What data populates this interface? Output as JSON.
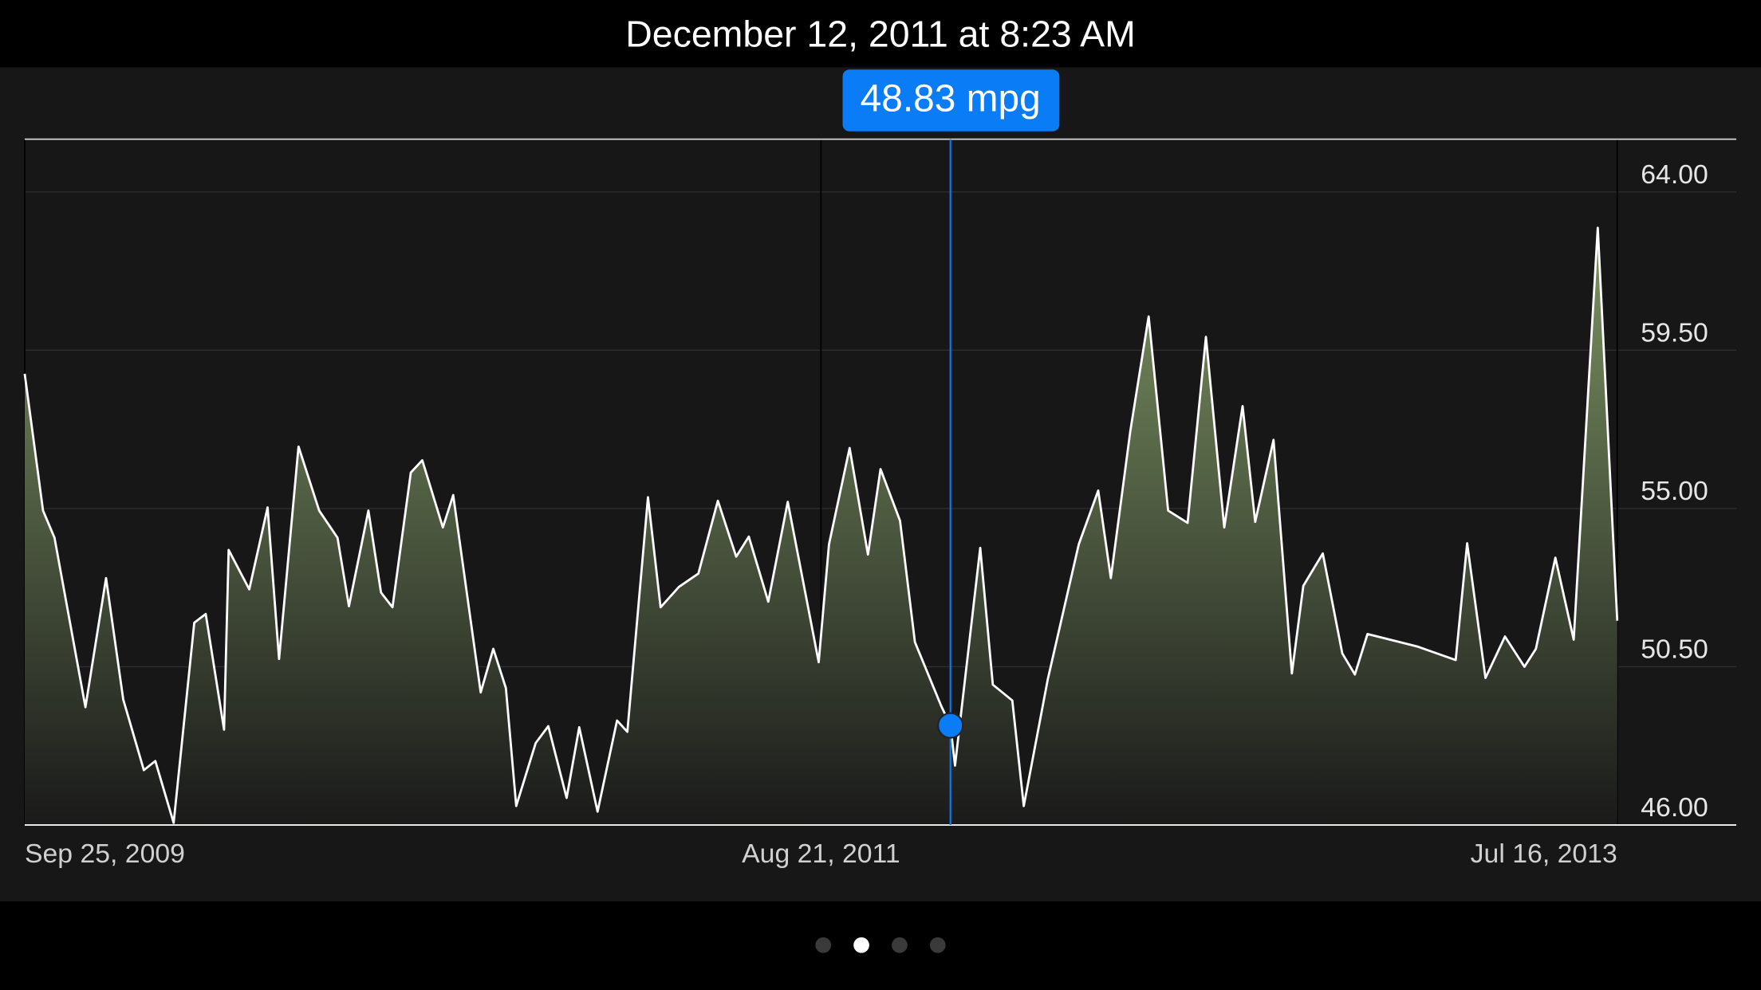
{
  "chart_data": {
    "type": "area",
    "selected": {
      "date": "December 12, 2011 at 8:23 AM",
      "value": 48.83,
      "value_label": "48.83 mpg"
    },
    "color": "#ffffff",
    "fill_color": "#7d9463",
    "highlight_color": "#0a7cf5",
    "xlim": [
      "2009-09-25",
      "2013-07-16"
    ],
    "xticks": [
      {
        "value": "2009-09-25",
        "label": "Sep 25, 2009"
      },
      {
        "value": "2011-08-21",
        "label": "Aug 21, 2011"
      },
      {
        "value": "2013-07-16",
        "label": "Jul 16, 2013"
      }
    ],
    "ylim": [
      46,
      65.5
    ],
    "yticks": [
      {
        "value": 46,
        "label": "46.00"
      },
      {
        "value": 50.5,
        "label": "50.50"
      },
      {
        "value": 55,
        "label": "55.00"
      },
      {
        "value": 59.5,
        "label": "59.50"
      },
      {
        "value": 64,
        "label": "64.00"
      }
    ],
    "grid": true,
    "x": [
      "2009-09-25",
      "2009-10-11",
      "2009-10-21",
      "2009-11-17",
      "2009-12-05",
      "2009-12-20",
      "2010-01-07",
      "2010-01-17",
      "2010-02-02",
      "2010-02-20",
      "2010-03-02",
      "2010-03-18",
      "2010-03-22",
      "2010-04-09",
      "2010-04-25",
      "2010-05-05",
      "2010-05-22",
      "2010-06-09",
      "2010-06-25",
      "2010-07-05",
      "2010-07-22",
      "2010-08-02",
      "2010-08-12",
      "2010-08-28",
      "2010-09-07",
      "2010-09-25",
      "2010-10-04",
      "2010-10-28",
      "2010-11-08",
      "2010-11-19",
      "2010-11-28",
      "2010-12-15",
      "2010-12-26",
      "2011-01-11",
      "2011-01-22",
      "2011-02-07",
      "2011-02-24",
      "2011-03-05",
      "2011-03-23",
      "2011-04-03",
      "2011-04-19",
      "2011-05-06",
      "2011-05-23",
      "2011-06-08",
      "2011-06-19",
      "2011-07-06",
      "2011-07-23",
      "2011-08-19",
      "2011-08-28",
      "2011-09-15",
      "2011-10-01",
      "2011-10-12",
      "2011-10-29",
      "2011-11-11",
      "2011-12-04",
      "2011-12-12",
      "2011-12-16",
      "2012-01-07",
      "2012-01-18",
      "2012-02-04",
      "2012-02-14",
      "2012-03-06",
      "2012-04-02",
      "2012-04-19",
      "2012-04-30",
      "2012-05-17",
      "2012-06-02",
      "2012-06-19",
      "2012-07-06",
      "2012-07-22",
      "2012-08-07",
      "2012-08-23",
      "2012-09-03",
      "2012-09-19",
      "2012-10-05",
      "2012-10-15",
      "2012-11-01",
      "2012-11-18",
      "2012-11-29",
      "2012-12-10",
      "2013-01-23",
      "2013-02-25",
      "2013-03-07",
      "2013-03-23",
      "2013-04-09",
      "2013-04-26",
      "2013-05-06",
      "2013-05-23",
      "2013-06-08",
      "2013-06-29",
      "2013-07-16"
    ],
    "values": [
      58.83,
      54.94,
      54.17,
      49.35,
      53.02,
      49.57,
      47.56,
      47.82,
      46.06,
      51.75,
      52.0,
      48.71,
      53.82,
      52.7,
      55.03,
      50.72,
      56.76,
      54.94,
      54.17,
      52.22,
      54.94,
      52.61,
      52.19,
      56.02,
      56.37,
      54.46,
      55.38,
      49.77,
      51.01,
      49.89,
      46.54,
      48.33,
      48.81,
      46.77,
      48.78,
      46.38,
      48.97,
      48.65,
      55.32,
      52.19,
      52.77,
      53.15,
      55.22,
      53.63,
      54.2,
      52.35,
      55.19,
      50.63,
      53.98,
      56.72,
      53.69,
      56.12,
      54.65,
      51.2,
      49.38,
      48.83,
      47.69,
      53.88,
      49.99,
      49.54,
      46.54,
      50.15,
      53.98,
      55.51,
      53.02,
      57.2,
      60.46,
      54.94,
      54.59,
      59.88,
      54.46,
      57.91,
      54.62,
      56.95,
      50.31,
      52.8,
      53.72,
      50.88,
      50.28,
      51.43,
      51.07,
      50.69,
      54.01,
      50.18,
      51.36,
      50.5,
      51.01,
      53.6,
      51.27,
      62.98,
      51.81
    ]
  }
}
